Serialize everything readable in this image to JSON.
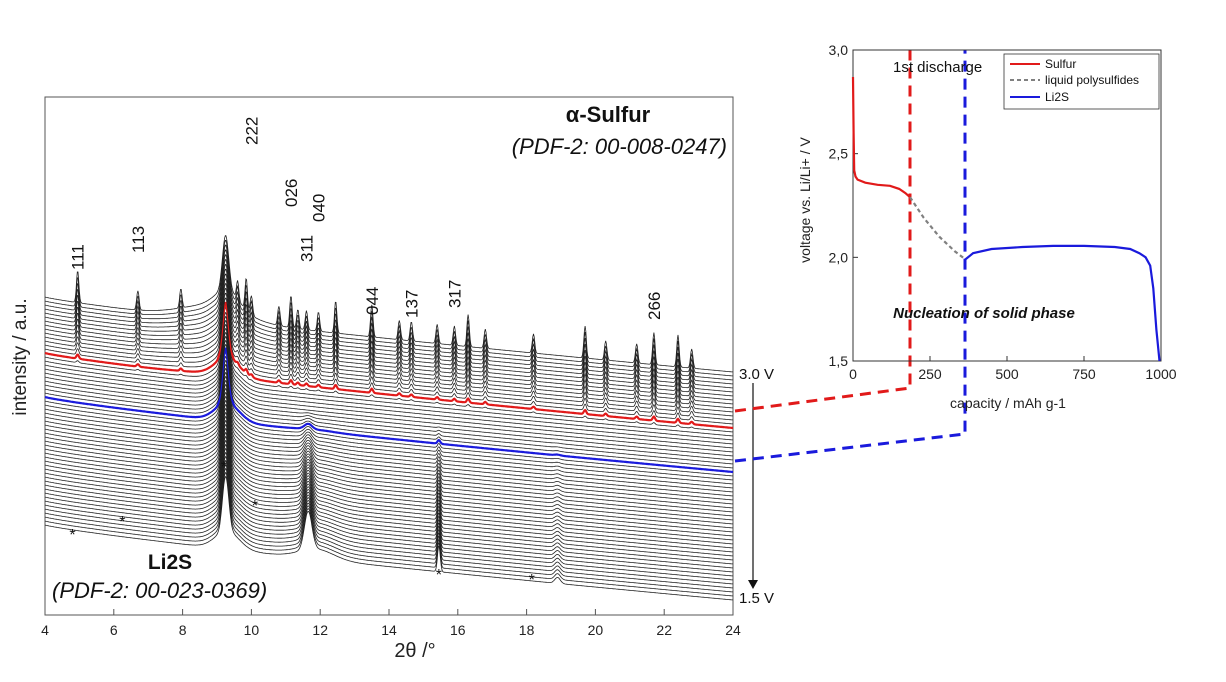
{
  "chart_data": [
    {
      "type": "line",
      "subtype": "stacked-xrd-waterfall",
      "xlabel": "2θ /°",
      "ylabel": "intensity / a.u.",
      "xlim": [
        4,
        24
      ],
      "x_ticks": [
        "4",
        "6",
        "8",
        "10",
        "12",
        "14",
        "16",
        "18",
        "20",
        "22",
        "24"
      ],
      "top_label": "3.0 V",
      "bottom_label": "1.5 V",
      "annotations": {
        "sulfur_title": "α-Sulfur",
        "sulfur_ref": "(PDF-2: 00-008-0247)",
        "li2s_title": "Li2S",
        "li2s_ref": "(PDF-2: 00-023-0369)"
      },
      "sulfur_peaks": [
        {
          "label": "111",
          "x": 4.95
        },
        {
          "label": "113",
          "x": 6.7
        },
        {
          "label": "222",
          "x": 10.0
        },
        {
          "label": "026",
          "x": 11.15
        },
        {
          "label": "311",
          "x": 11.6
        },
        {
          "label": "040",
          "x": 11.95
        },
        {
          "label": "044",
          "x": 13.5
        },
        {
          "label": "137",
          "x": 14.65
        },
        {
          "label": "317",
          "x": 15.9
        },
        {
          "label": "266",
          "x": 21.7
        }
      ],
      "li2s_reflections_x": [
        4.8,
        6.25,
        9.2,
        10.1,
        15.45,
        18.15
      ],
      "series": [
        {
          "name": "Sulfur",
          "color": "#e11a1a"
        },
        {
          "name": "Li2S",
          "color": "#1a1adc"
        }
      ]
    },
    {
      "type": "line",
      "xlabel": "capacity / mAh g-1",
      "ylabel": "voltage vs. Li/Li+ / V",
      "xlim": [
        0,
        1000
      ],
      "ylim": [
        1.5,
        3.0
      ],
      "x_ticks": [
        "0",
        "250",
        "500",
        "750",
        "1000"
      ],
      "y_ticks": [
        "1,5",
        "2,0",
        "2,5",
        "3,0"
      ],
      "annotation_discharge": "1st discharge",
      "annotation_nucleation": "Nucleation of solid phase",
      "legend_position": "top-right",
      "series": [
        {
          "name": "Sulfur",
          "color": "#e11a1a",
          "style": "solid",
          "x": [
            0,
            2,
            4,
            8,
            15,
            40,
            80,
            120,
            150,
            170,
            185
          ],
          "y": [
            2.87,
            2.6,
            2.42,
            2.39,
            2.375,
            2.36,
            2.35,
            2.345,
            2.33,
            2.31,
            2.29
          ]
        },
        {
          "name": "liquid polysulfides",
          "color": "#808080",
          "style": "dashed",
          "x": [
            185,
            230,
            280,
            330,
            365
          ],
          "y": [
            2.29,
            2.19,
            2.1,
            2.03,
            1.99
          ]
        },
        {
          "name": "Li2S",
          "color": "#1a1adc",
          "style": "solid",
          "x": [
            365,
            390,
            450,
            550,
            650,
            750,
            850,
            900,
            930,
            950,
            965,
            975,
            985,
            995
          ],
          "y": [
            1.99,
            2.02,
            2.04,
            2.05,
            2.055,
            2.055,
            2.05,
            2.04,
            2.02,
            2.0,
            1.96,
            1.85,
            1.65,
            1.5
          ]
        }
      ]
    }
  ]
}
